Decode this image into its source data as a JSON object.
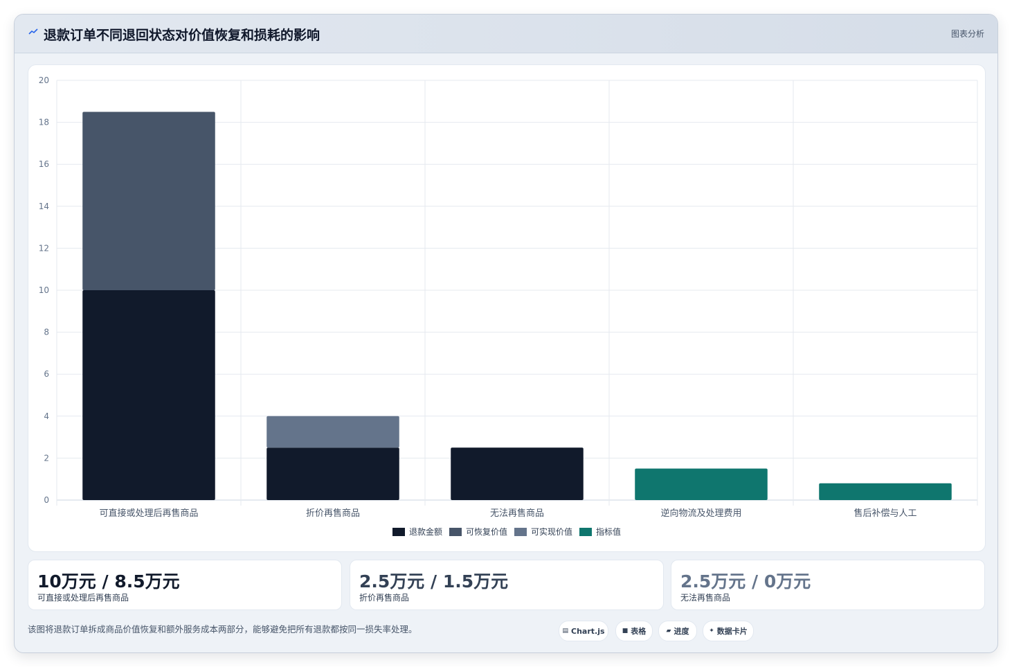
{
  "header": {
    "title": "退款订单不同退回状态对价值恢复和损耗的影响",
    "tag": "图表分析"
  },
  "colors": {
    "refund": "#111a2b",
    "recoverable": "#475569",
    "realizable": "#64748b",
    "indicator": "#0f766e"
  },
  "chart_data": {
    "type": "bar",
    "stacked": true,
    "categories": [
      "可直接或处理后再售商品",
      "折价再售商品",
      "无法再售商品",
      "逆向物流及处理费用",
      "售后补偿与人工"
    ],
    "series": [
      {
        "name": "退款金额",
        "color": "#111a2b",
        "values": [
          10,
          2.5,
          2.5,
          0,
          0
        ]
      },
      {
        "name": "可恢复价值",
        "color": "#475569",
        "values": [
          8.5,
          0,
          0,
          0,
          0
        ]
      },
      {
        "name": "可实现价值",
        "color": "#64748b",
        "values": [
          0,
          1.5,
          0,
          0,
          0
        ]
      },
      {
        "name": "指标值",
        "color": "#0f766e",
        "values": [
          0,
          0,
          0,
          1.5,
          0.8
        ]
      }
    ],
    "ylim": [
      0,
      20
    ],
    "yticks": [
      0,
      2,
      4,
      6,
      8,
      10,
      12,
      14,
      16,
      18,
      20
    ],
    "grid": true,
    "legend": "bottom"
  },
  "stats": [
    {
      "value": "10万元 / 8.5万元",
      "label": "可直接或处理后再售商品",
      "color": "#111a2b"
    },
    {
      "value": "2.5万元 / 1.5万元",
      "label": "折价再售商品",
      "color": "#334155"
    },
    {
      "value": "2.5万元 / 0万元",
      "label": "无法再售商品",
      "color": "#64748b"
    }
  ],
  "footnote": "该图将退款订单拆成商品价值恢复和额外服务成本两部分，能够避免把所有退款都按同一损失率处理。",
  "chips": [
    {
      "icon": "▤",
      "label": "Chart.js"
    },
    {
      "icon": "■",
      "label": "表格"
    },
    {
      "icon": "▰",
      "label": "进度"
    },
    {
      "icon": "✦",
      "label": "数据卡片"
    }
  ]
}
